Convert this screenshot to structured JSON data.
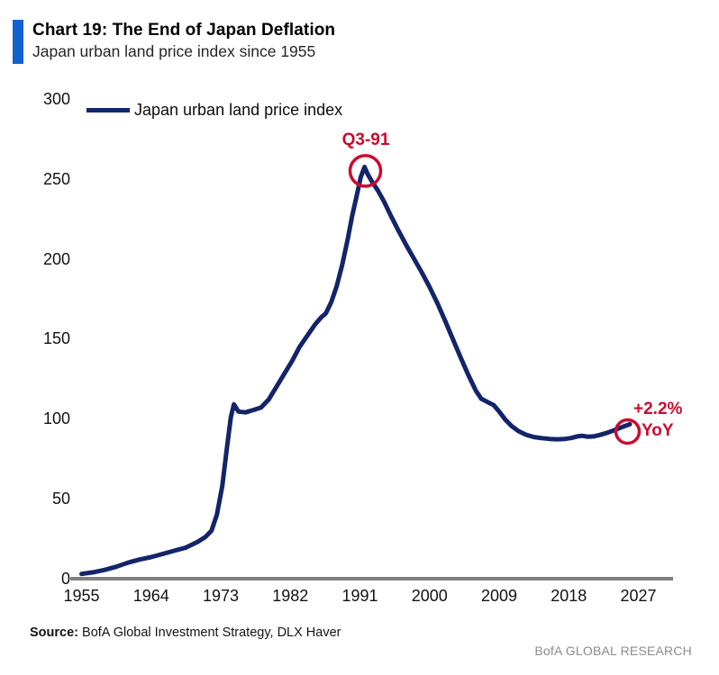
{
  "header": {
    "title": "Chart 19: The End of Japan Deflation",
    "subtitle": "Japan urban land price index since 1955"
  },
  "legend": {
    "label": "Japan urban land price index"
  },
  "source": {
    "label": "Source:",
    "text": " BofA Global Investment Strategy, DLX Haver"
  },
  "brand": "BofA GLOBAL RESEARCH",
  "colors": {
    "line": "#13246B",
    "accent_red": "#CC0A2E",
    "header_bar": "#1262D2",
    "axis": "#808080",
    "brand_gray": "#8C8C8C"
  },
  "chart_data": {
    "type": "line",
    "title": "Japan urban land price index",
    "xlabel": "",
    "ylabel": "",
    "xticks": [
      1955,
      1964,
      1973,
      1982,
      1991,
      2000,
      2009,
      2018,
      2027
    ],
    "yticks": [
      0,
      50,
      100,
      150,
      200,
      250,
      300
    ],
    "xlim": [
      1953.5,
      2031.5
    ],
    "ylim": [
      0,
      300
    ],
    "grid": false,
    "legend_position": "top-left",
    "series": [
      {
        "name": "Japan urban land price index",
        "points": [
          [
            1955,
            3
          ],
          [
            1956.5,
            4
          ],
          [
            1958,
            5.5
          ],
          [
            1959.5,
            7.5
          ],
          [
            1961,
            10
          ],
          [
            1962.5,
            12
          ],
          [
            1964,
            13.5
          ],
          [
            1965.5,
            15.5
          ],
          [
            1967,
            17.5
          ],
          [
            1968.5,
            19.5
          ],
          [
            1970,
            23
          ],
          [
            1971,
            26
          ],
          [
            1971.8,
            30
          ],
          [
            1972.5,
            40
          ],
          [
            1973.2,
            58
          ],
          [
            1973.8,
            82
          ],
          [
            1974.3,
            101
          ],
          [
            1974.7,
            109
          ],
          [
            1975.3,
            104.5
          ],
          [
            1976.2,
            104
          ],
          [
            1977.2,
            105.5
          ],
          [
            1978.2,
            107
          ],
          [
            1979.2,
            112
          ],
          [
            1980.2,
            120
          ],
          [
            1981.2,
            128
          ],
          [
            1982.2,
            136
          ],
          [
            1983.2,
            145
          ],
          [
            1984.2,
            152
          ],
          [
            1985.2,
            159
          ],
          [
            1986,
            163.5
          ],
          [
            1986.6,
            166
          ],
          [
            1987.3,
            173
          ],
          [
            1988,
            183
          ],
          [
            1988.7,
            196
          ],
          [
            1989.4,
            212
          ],
          [
            1990,
            227
          ],
          [
            1990.6,
            240
          ],
          [
            1991.1,
            251
          ],
          [
            1991.6,
            257.5
          ],
          [
            1992,
            253
          ],
          [
            1992.6,
            248
          ],
          [
            1993.3,
            243
          ],
          [
            1994.1,
            236
          ],
          [
            1995,
            227
          ],
          [
            1996,
            217.5
          ],
          [
            1997,
            208.5
          ],
          [
            1998,
            200
          ],
          [
            1999,
            191.5
          ],
          [
            2000,
            182.5
          ],
          [
            2001,
            172.5
          ],
          [
            2002,
            161.5
          ],
          [
            2003,
            150
          ],
          [
            2004,
            138.5
          ],
          [
            2005,
            127.5
          ],
          [
            2006,
            117.5
          ],
          [
            2006.7,
            112.5
          ],
          [
            2007.5,
            110.5
          ],
          [
            2008.3,
            108.5
          ],
          [
            2009,
            104.5
          ],
          [
            2009.8,
            99.5
          ],
          [
            2010.6,
            95.5
          ],
          [
            2011.5,
            92.3
          ],
          [
            2012.5,
            90
          ],
          [
            2013.5,
            88.6
          ],
          [
            2014.5,
            87.9
          ],
          [
            2015.5,
            87.4
          ],
          [
            2016.5,
            87.2
          ],
          [
            2017.5,
            87.4
          ],
          [
            2018.3,
            88
          ],
          [
            2019.1,
            89
          ],
          [
            2019.7,
            89.4
          ],
          [
            2020.4,
            88.8
          ],
          [
            2021.2,
            89
          ],
          [
            2022,
            89.9
          ],
          [
            2023,
            91.3
          ],
          [
            2024,
            93.1
          ],
          [
            2025,
            95
          ],
          [
            2025.9,
            96.6
          ]
        ]
      }
    ],
    "annotations": [
      {
        "label": "Q3-91",
        "circle_year": 1991.7,
        "circle_value": 255
      },
      {
        "label_line1": "+2.2%",
        "label_line2": "YoY",
        "circle_year": 2025.6,
        "circle_value": 92
      }
    ]
  }
}
